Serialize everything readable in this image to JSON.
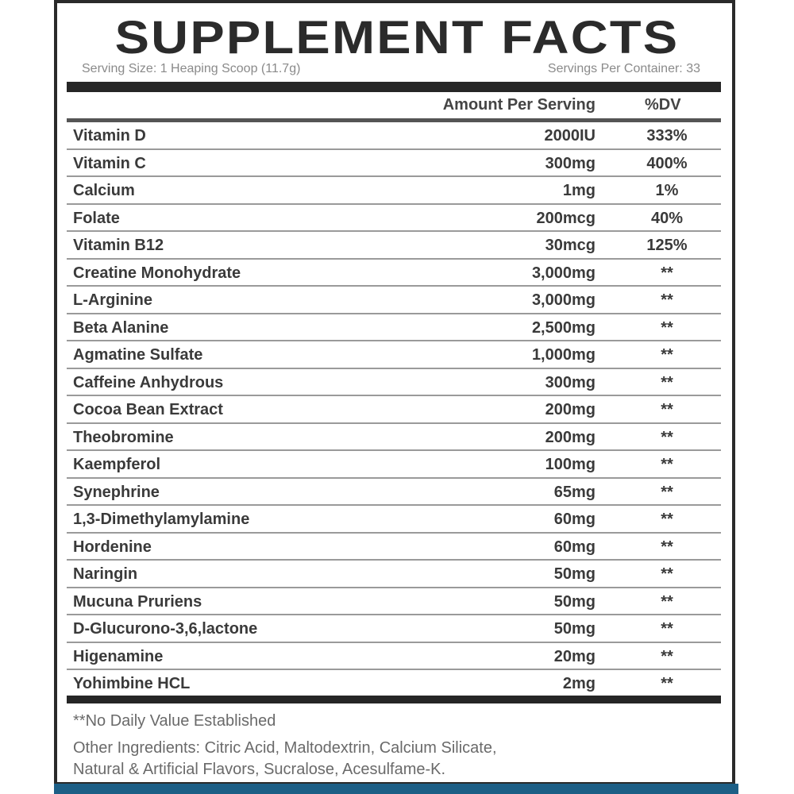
{
  "title": "SUPPLEMENT FACTS",
  "serving_size": "Serving Size: 1 Heaping Scoop (11.7g)",
  "servings_per_container": "Servings Per Container: 33",
  "header": {
    "amount": "Amount Per Serving",
    "dv": "%DV"
  },
  "rows": [
    {
      "name": "Vitamin D",
      "amount": "2000IU",
      "dv": "333%"
    },
    {
      "name": "Vitamin C",
      "amount": "300mg",
      "dv": "400%"
    },
    {
      "name": "Calcium",
      "amount": "1mg",
      "dv": "1%"
    },
    {
      "name": "Folate",
      "amount": "200mcg",
      "dv": "40%"
    },
    {
      "name": "Vitamin B12",
      "amount": "30mcg",
      "dv": "125%"
    },
    {
      "name": "Creatine Monohydrate",
      "amount": "3,000mg",
      "dv": "**"
    },
    {
      "name": "L-Arginine",
      "amount": "3,000mg",
      "dv": "**"
    },
    {
      "name": "Beta Alanine",
      "amount": "2,500mg",
      "dv": "**"
    },
    {
      "name": "Agmatine Sulfate",
      "amount": "1,000mg",
      "dv": "**"
    },
    {
      "name": "Caffeine Anhydrous",
      "amount": "300mg",
      "dv": "**"
    },
    {
      "name": "Cocoa Bean Extract",
      "amount": "200mg",
      "dv": "**"
    },
    {
      "name": "Theobromine",
      "amount": "200mg",
      "dv": "**"
    },
    {
      "name": "Kaempferol",
      "amount": "100mg",
      "dv": "**"
    },
    {
      "name": "Synephrine",
      "amount": "65mg",
      "dv": "**"
    },
    {
      "name": "1,3-Dimethylamylamine",
      "amount": "60mg",
      "dv": "**"
    },
    {
      "name": "Hordenine",
      "amount": "60mg",
      "dv": "**"
    },
    {
      "name": "Naringin",
      "amount": "50mg",
      "dv": "**"
    },
    {
      "name": "Mucuna Pruriens",
      "amount": "50mg",
      "dv": "**"
    },
    {
      "name": "D-Glucurono-3,6,lactone",
      "amount": "50mg",
      "dv": "**"
    },
    {
      "name": "Higenamine",
      "amount": "20mg",
      "dv": "**"
    },
    {
      "name": "Yohimbine HCL",
      "amount": "2mg",
      "dv": "**"
    }
  ],
  "footnote": "**No Daily Value Established",
  "other_ingredients_1": "Other Ingredients: Citric Acid, Maltodextrin, Calcium Silicate,",
  "other_ingredients_2": "Natural & Artificial Flavors, Sucralose, Acesulfame-K."
}
